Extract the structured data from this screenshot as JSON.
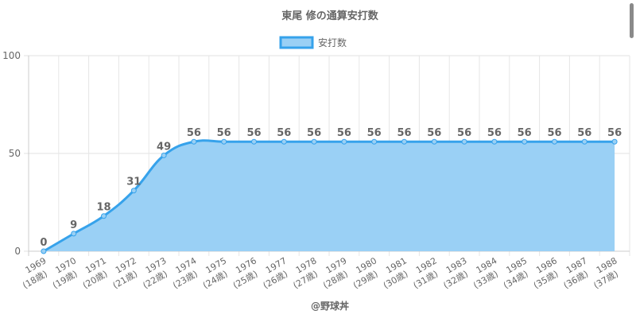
{
  "chart_data": {
    "type": "area",
    "title": "東尾 修の通算安打数",
    "categories": [
      "1969",
      "1970",
      "1971",
      "1972",
      "1973",
      "1974",
      "1975",
      "1976",
      "1977",
      "1978",
      "1979",
      "1980",
      "1981",
      "1982",
      "1983",
      "1984",
      "1985",
      "1986",
      "1987",
      "1988"
    ],
    "sublabels": [
      "(18歳)",
      "(19歳)",
      "(20歳)",
      "(21歳)",
      "(22歳)",
      "(23歳)",
      "(24歳)",
      "(25歳)",
      "(26歳)",
      "(27歳)",
      "(28歳)",
      "(29歳)",
      "(30歳)",
      "(31歳)",
      "(32歳)",
      "(33歳)",
      "(34歳)",
      "(35歳)",
      "(36歳)",
      "(37歳)"
    ],
    "series": [
      {
        "name": "安打数",
        "values": [
          0,
          9,
          18,
          31,
          49,
          56,
          56,
          56,
          56,
          56,
          56,
          56,
          56,
          56,
          56,
          56,
          56,
          56,
          56,
          56
        ]
      }
    ],
    "ylim": [
      0,
      100
    ],
    "yticks": [
      0,
      50,
      100
    ],
    "grid": true,
    "legend": "top-center",
    "line_color": "#36a2eb",
    "fill_color": "#9ad0f5"
  },
  "footer": "@野球丼"
}
